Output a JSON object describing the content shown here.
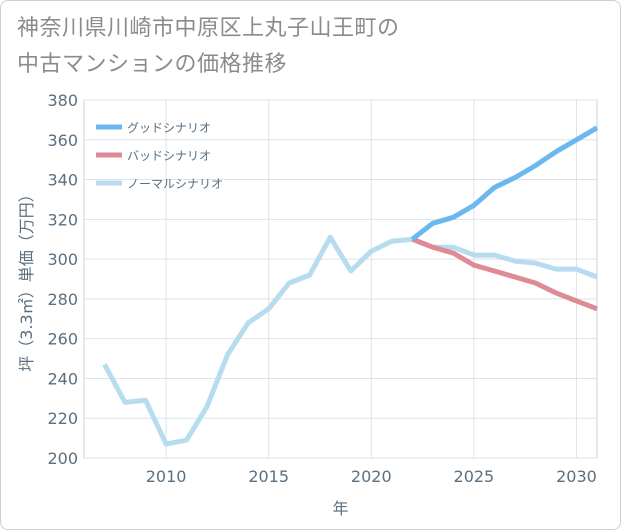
{
  "title_line1": "神奈川県川崎市中原区上丸子山王町の",
  "title_line2": "中古マンションの価格推移",
  "chart_data": {
    "type": "line",
    "xlabel": "年",
    "ylabel": "坪（3.3㎡）単価（万円）",
    "xlim": [
      2006,
      2031
    ],
    "ylim": [
      200,
      380
    ],
    "xticks": [
      2010,
      2015,
      2020,
      2025,
      2030
    ],
    "yticks": [
      200,
      220,
      240,
      260,
      280,
      300,
      320,
      340,
      360,
      380
    ],
    "grid": true,
    "legend_position": "top-left",
    "series": [
      {
        "name": "グッドシナリオ",
        "color": "#6cb8ee",
        "x": [
          2022,
          2023,
          2024,
          2025,
          2026,
          2027,
          2028,
          2029,
          2030,
          2031
        ],
        "values": [
          310,
          318,
          321,
          327,
          336,
          341,
          347,
          354,
          360,
          366
        ]
      },
      {
        "name": "バッドシナリオ",
        "color": "#de8b95",
        "x": [
          2022,
          2023,
          2024,
          2025,
          2026,
          2027,
          2028,
          2029,
          2030,
          2031
        ],
        "values": [
          310,
          306,
          303,
          297,
          294,
          291,
          288,
          283,
          279,
          275
        ]
      },
      {
        "name": "ノーマルシナリオ",
        "color": "#b8dcef",
        "x": [
          2007,
          2008,
          2009,
          2010,
          2011,
          2012,
          2013,
          2014,
          2015,
          2016,
          2017,
          2018,
          2019,
          2020,
          2021,
          2022,
          2023,
          2024,
          2025,
          2026,
          2027,
          2028,
          2029,
          2030,
          2031
        ],
        "values": [
          247,
          228,
          229,
          207,
          209,
          226,
          252,
          268,
          275,
          288,
          292,
          311,
          294,
          304,
          309,
          310,
          306,
          306,
          302,
          302,
          299,
          298,
          295,
          295,
          291
        ]
      }
    ]
  }
}
